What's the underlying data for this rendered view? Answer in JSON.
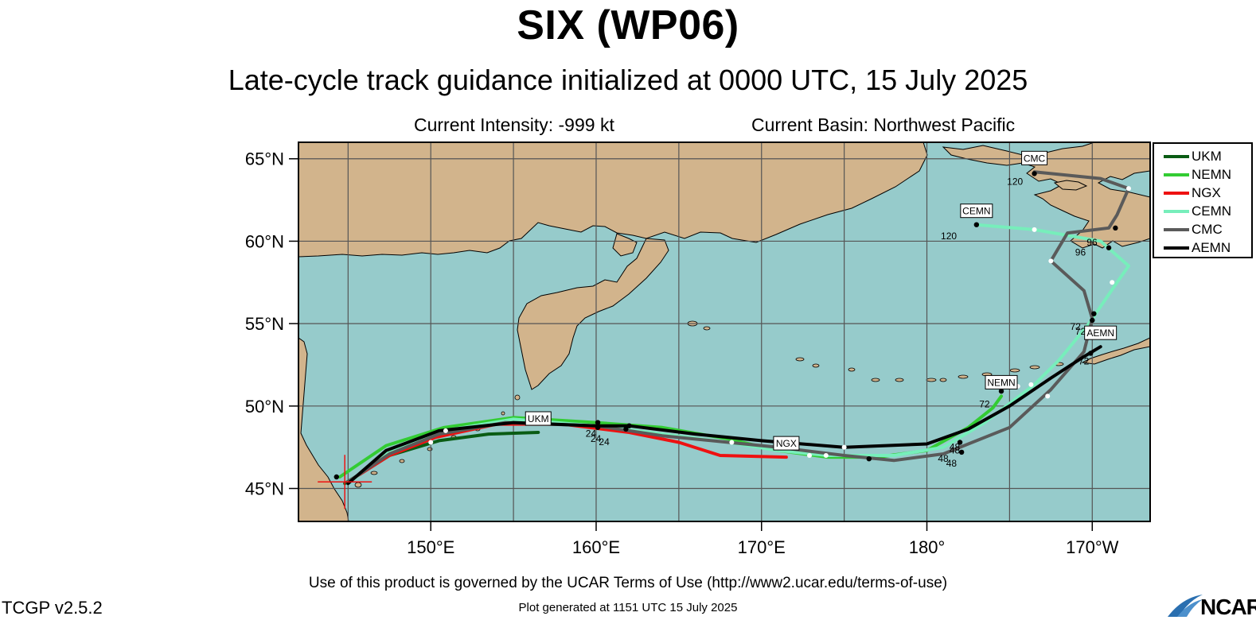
{
  "header": {
    "title": "SIX (WP06)",
    "subtitle": "Late-cycle track guidance initialized at 0000 UTC, 15 July 2025",
    "intensity": "Current Intensity: -999 kt",
    "basin": "Current Basin: Northwest Pacific"
  },
  "footer": {
    "terms": "Use of this product is governed by the UCAR Terms of Use (http://www2.ucar.edu/terms-of-use)",
    "generated": "Plot generated at 1151 UTC   15 July 2025",
    "version": "TCGP v2.5.2",
    "logo": "NCAR"
  },
  "map": {
    "lon_range": [
      142,
      193.5
    ],
    "lat_range": [
      43,
      66
    ],
    "lat_ticks": [
      {
        "value": 45,
        "label": "45°N"
      },
      {
        "value": 50,
        "label": "50°N"
      },
      {
        "value": 55,
        "label": "55°N"
      },
      {
        "value": 60,
        "label": "60°N"
      },
      {
        "value": 65,
        "label": "65°N"
      }
    ],
    "lon_ticks": [
      {
        "value": 150,
        "label": "150°E"
      },
      {
        "value": 160,
        "label": "160°E"
      },
      {
        "value": 170,
        "label": "170°E"
      },
      {
        "value": 180,
        "label": "180°"
      },
      {
        "value": 190,
        "label": "170°W"
      }
    ],
    "colors": {
      "ocean": "#96cbcb",
      "land": "#d2b48c",
      "grid": "#555555"
    }
  },
  "chart_data": {
    "type": "line",
    "storm_position": {
      "lon": 144.8,
      "lat": 45.4
    },
    "series": [
      {
        "name": "UKM",
        "color": "#0a5c14",
        "points": [
          [
            144.8,
            45.3
          ],
          [
            147.5,
            47.0
          ],
          [
            150.5,
            47.9
          ],
          [
            153.5,
            48.3
          ],
          [
            156.5,
            48.4
          ]
        ],
        "end_label": "UKM",
        "tau_labels": []
      },
      {
        "name": "NEMN",
        "color": "#33cc33",
        "points": [
          [
            144.5,
            45.7
          ],
          [
            147.3,
            47.6
          ],
          [
            150.8,
            48.7
          ],
          [
            155.0,
            49.3
          ],
          [
            160.0,
            49.0
          ],
          [
            164.0,
            48.7
          ],
          [
            168.0,
            48.0
          ],
          [
            171.0,
            47.3
          ],
          [
            174.0,
            46.9
          ],
          [
            177.0,
            46.9
          ],
          [
            180.0,
            47.3
          ],
          [
            182.5,
            48.7
          ],
          [
            184.0,
            49.9
          ],
          [
            184.5,
            50.6
          ]
        ],
        "end_label": "NEMN",
        "tau_labels": [
          {
            "lon": 160.2,
            "lat": 48.8,
            "text": "24"
          },
          {
            "lon": 182.2,
            "lat": 47.8,
            "text": "48"
          },
          {
            "lon": 184.0,
            "lat": 50.6,
            "text": "72"
          }
        ]
      },
      {
        "name": "NGX",
        "color": "#ee1111",
        "points": [
          [
            145.0,
            45.4
          ],
          [
            147.5,
            47.0
          ],
          [
            150.3,
            48.1
          ],
          [
            154.0,
            48.9
          ],
          [
            158.0,
            48.9
          ],
          [
            162.0,
            48.4
          ],
          [
            165.0,
            47.8
          ],
          [
            167.5,
            47.0
          ],
          [
            171.5,
            46.9
          ]
        ],
        "end_label": "NGX",
        "tau_labels": [
          {
            "lon": 161.0,
            "lat": 48.3,
            "text": "24"
          }
        ]
      },
      {
        "name": "CEMN",
        "color": "#77eebb",
        "points": [
          [
            145.0,
            45.3
          ],
          [
            147.3,
            47.2
          ],
          [
            150.8,
            48.5
          ],
          [
            155.0,
            49.2
          ],
          [
            160.0,
            48.8
          ],
          [
            164.0,
            48.3
          ],
          [
            168.0,
            47.8
          ],
          [
            171.0,
            47.3
          ],
          [
            174.0,
            47.0
          ],
          [
            178.0,
            47.0
          ],
          [
            181.0,
            47.5
          ],
          [
            183.5,
            49.0
          ],
          [
            186.5,
            51.3
          ],
          [
            188.0,
            52.8
          ],
          [
            189.8,
            55.0
          ],
          [
            191.5,
            57.5
          ],
          [
            192.2,
            58.5
          ],
          [
            190.5,
            60.0
          ],
          [
            186.5,
            60.7
          ],
          [
            183.0,
            61.0
          ]
        ],
        "end_label": "CEMN",
        "tau_labels": [
          {
            "lon": 182.2,
            "lat": 48.0,
            "text": "48"
          },
          {
            "lon": 189.8,
            "lat": 55.0,
            "text": "72"
          },
          {
            "lon": 189.8,
            "lat": 59.8,
            "text": "96"
          },
          {
            "lon": 182.0,
            "lat": 60.8,
            "text": "120"
          }
        ]
      },
      {
        "name": "CMC",
        "color": "#5a5a5a",
        "points": [
          [
            145.0,
            45.4
          ],
          [
            147.5,
            47.1
          ],
          [
            150.5,
            48.3
          ],
          [
            154.5,
            49.0
          ],
          [
            160.0,
            48.8
          ],
          [
            164.0,
            48.2
          ],
          [
            168.0,
            47.8
          ],
          [
            171.0,
            47.5
          ],
          [
            175.0,
            47.0
          ],
          [
            178.0,
            46.7
          ],
          [
            181.0,
            47.1
          ],
          [
            185.0,
            48.7
          ],
          [
            187.5,
            51.0
          ],
          [
            189.5,
            53.3
          ],
          [
            190.0,
            55.3
          ],
          [
            189.5,
            57.0
          ],
          [
            187.5,
            58.8
          ],
          [
            188.5,
            60.5
          ],
          [
            191.0,
            60.8
          ],
          [
            191.5,
            61.6
          ],
          [
            192.2,
            63.2
          ],
          [
            190.5,
            63.8
          ],
          [
            186.5,
            64.2
          ]
        ],
        "end_label": "CMC",
        "tau_labels": [
          {
            "lon": 182.0,
            "lat": 47.0,
            "text": "48"
          },
          {
            "lon": 189.5,
            "lat": 55.3,
            "text": "72"
          },
          {
            "lon": 190.5,
            "lat": 60.4,
            "text": "96"
          },
          {
            "lon": 186.0,
            "lat": 64.1,
            "text": "120"
          }
        ]
      },
      {
        "name": "AEMN",
        "color": "#000000",
        "points": [
          [
            145.0,
            45.3
          ],
          [
            147.3,
            47.3
          ],
          [
            150.5,
            48.5
          ],
          [
            155.0,
            49.0
          ],
          [
            160.0,
            48.8
          ],
          [
            162.0,
            48.8
          ],
          [
            166.0,
            48.3
          ],
          [
            170.0,
            47.9
          ],
          [
            175.0,
            47.5
          ],
          [
            180.0,
            47.7
          ],
          [
            182.5,
            48.6
          ],
          [
            185.0,
            50.0
          ],
          [
            187.5,
            51.7
          ],
          [
            189.5,
            53.0
          ],
          [
            190.5,
            53.6
          ]
        ],
        "end_label": "AEMN",
        "tau_labels": [
          {
            "lon": 160.5,
            "lat": 48.5,
            "text": "24"
          },
          {
            "lon": 181.5,
            "lat": 47.3,
            "text": "48"
          },
          {
            "lon": 190.0,
            "lat": 53.2,
            "text": "72"
          }
        ]
      }
    ],
    "intermediate_points": [
      {
        "lon": 150.9,
        "lat": 48.5
      },
      {
        "lon": 150.0,
        "lat": 47.8
      },
      {
        "lon": 168.2,
        "lat": 47.8
      },
      {
        "lon": 172.9,
        "lat": 47.0
      },
      {
        "lon": 173.9,
        "lat": 47.0
      },
      {
        "lon": 175.0,
        "lat": 47.5
      },
      {
        "lon": 186.3,
        "lat": 51.3
      },
      {
        "lon": 187.3,
        "lat": 50.6
      },
      {
        "lon": 191.2,
        "lat": 57.5
      },
      {
        "lon": 187.5,
        "lat": 58.8
      },
      {
        "lon": 186.5,
        "lat": 60.7
      },
      {
        "lon": 192.2,
        "lat": 63.2
      },
      {
        "lon": 185.5,
        "lat": 51.2
      }
    ],
    "tau_points": [
      {
        "lon": 160.1,
        "lat": 49.0
      },
      {
        "lon": 160.1,
        "lat": 48.7
      },
      {
        "lon": 161.8,
        "lat": 48.6
      },
      {
        "lon": 162.0,
        "lat": 48.8
      },
      {
        "lon": 176.5,
        "lat": 46.8
      },
      {
        "lon": 182.0,
        "lat": 47.8
      },
      {
        "lon": 182.1,
        "lat": 47.2
      },
      {
        "lon": 190.1,
        "lat": 55.6
      },
      {
        "lon": 190.0,
        "lat": 55.2
      },
      {
        "lon": 191.0,
        "lat": 59.6
      },
      {
        "lon": 191.4,
        "lat": 60.8
      },
      {
        "lon": 183.0,
        "lat": 61.0
      },
      {
        "lon": 186.5,
        "lat": 64.1
      },
      {
        "lon": 184.5,
        "lat": 50.9
      },
      {
        "lon": 189.9,
        "lat": 53.2
      },
      {
        "lon": 144.3,
        "lat": 45.7
      }
    ]
  },
  "legend": {
    "items": [
      {
        "label": "UKM",
        "color": "#0a5c14"
      },
      {
        "label": "NEMN",
        "color": "#33cc33"
      },
      {
        "label": "NGX",
        "color": "#ee1111"
      },
      {
        "label": "CEMN",
        "color": "#77eebb"
      },
      {
        "label": "CMC",
        "color": "#5a5a5a"
      },
      {
        "label": "AEMN",
        "color": "#000000"
      }
    ]
  }
}
